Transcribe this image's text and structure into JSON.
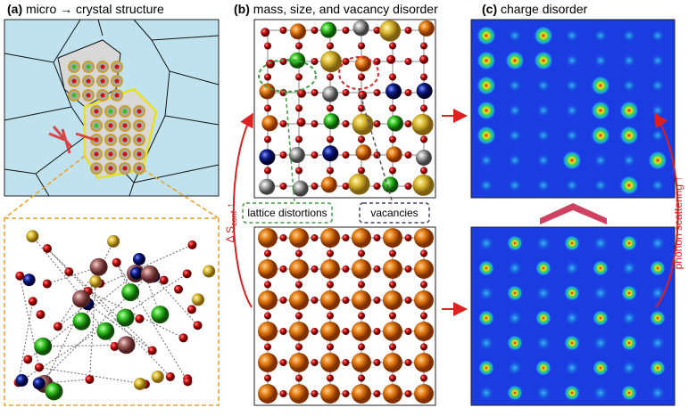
{
  "panels": [
    {
      "label": "(a)",
      "title": "micro → crystal structure"
    },
    {
      "label": "(b)",
      "title": "mass, size, and vacancy disorder"
    },
    {
      "label": "(c)",
      "title": "charge disorder"
    }
  ],
  "callouts": {
    "distortions": "lattice distortions",
    "vacancies": "vacancies"
  },
  "arrows": {
    "entropy": {
      "symbol": "Δ S",
      "subscript": "conf",
      "arrow": "↑"
    },
    "phonon": "phonon scattering ↑"
  }
}
